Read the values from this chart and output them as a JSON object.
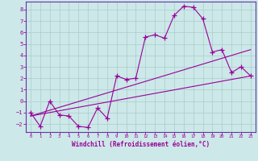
{
  "xlabel": "Windchill (Refroidissement éolien,°C)",
  "bg_color": "#cce8e8",
  "grid_color": "#aacccc",
  "line_color": "#990099",
  "spine_color": "#6633aa",
  "xlim": [
    -0.5,
    23.5
  ],
  "ylim": [
    -2.7,
    8.7
  ],
  "xticks": [
    0,
    1,
    2,
    3,
    4,
    5,
    6,
    7,
    8,
    9,
    10,
    11,
    12,
    13,
    14,
    15,
    16,
    17,
    18,
    19,
    20,
    21,
    22,
    23
  ],
  "yticks": [
    -2,
    -1,
    0,
    1,
    2,
    3,
    4,
    5,
    6,
    7,
    8
  ],
  "curve1_x": [
    0,
    1,
    2,
    3,
    4,
    5,
    6,
    7,
    8,
    9,
    10,
    11,
    12,
    13,
    14,
    15,
    16,
    17,
    18,
    19,
    20,
    21,
    22,
    23
  ],
  "curve1_y": [
    -1.0,
    -2.2,
    -0.0,
    -1.2,
    -1.3,
    -2.2,
    -2.3,
    -0.6,
    -1.5,
    2.2,
    1.9,
    2.0,
    5.6,
    5.8,
    5.5,
    7.5,
    8.3,
    8.2,
    7.2,
    4.3,
    4.5,
    2.5,
    3.0,
    2.2
  ],
  "line2_x": [
    0,
    23
  ],
  "line2_y": [
    -1.3,
    2.2
  ],
  "line3_x": [
    0,
    23
  ],
  "line3_y": [
    -1.3,
    4.5
  ]
}
